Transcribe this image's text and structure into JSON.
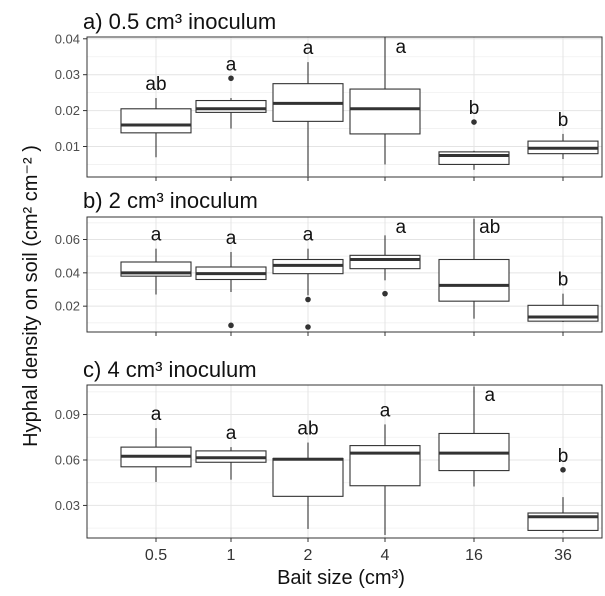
{
  "ylabel": "Hyphal density on soil (cm² cm⁻² )",
  "xlabel": "Bait size (cm³)",
  "chart_data": [
    {
      "type": "box",
      "title": "a) 0.5 cm³  inoculum",
      "categories": [
        "0.5",
        "1",
        "2",
        "4",
        "16",
        "36"
      ],
      "ylim": [
        0.0015,
        0.0405
      ],
      "yticks": [
        0.01,
        0.02,
        0.03,
        0.04
      ],
      "ytick_labels": [
        "0.01",
        "0.02",
        "0.03",
        "0.04"
      ],
      "boxes": [
        {
          "whisker_low": 0.007,
          "q1": 0.0138,
          "median": 0.016,
          "q3": 0.0205,
          "whisker_high": 0.0235,
          "outliers": [],
          "letter": "ab"
        },
        {
          "whisker_low": 0.015,
          "q1": 0.0195,
          "median": 0.0205,
          "q3": 0.0228,
          "whisker_high": 0.0235,
          "outliers": [
            0.029
          ],
          "letter": "a"
        },
        {
          "whisker_low": 0.0017,
          "q1": 0.017,
          "median": 0.022,
          "q3": 0.0275,
          "whisker_high": 0.0335,
          "outliers": [],
          "letter": "a"
        },
        {
          "whisker_low": 0.005,
          "q1": 0.0135,
          "median": 0.0205,
          "q3": 0.026,
          "whisker_high": 0.0405,
          "outliers": [],
          "letter": "a"
        },
        {
          "whisker_low": 0.0035,
          "q1": 0.005,
          "median": 0.0075,
          "q3": 0.0085,
          "whisker_high": 0.0088,
          "outliers": [
            0.0168
          ],
          "letter": "b"
        },
        {
          "whisker_low": 0.0065,
          "q1": 0.008,
          "median": 0.0095,
          "q3": 0.0115,
          "whisker_high": 0.0135,
          "outliers": [],
          "letter": "b"
        }
      ]
    },
    {
      "type": "box",
      "title": "b) 2 cm³ inoculum",
      "categories": [
        "0.5",
        "1",
        "2",
        "4",
        "16",
        "36"
      ],
      "ylim": [
        0.0045,
        0.0735
      ],
      "yticks": [
        0.02,
        0.04,
        0.06
      ],
      "ytick_labels": [
        "0.02",
        "0.04",
        "0.06"
      ],
      "boxes": [
        {
          "whisker_low": 0.027,
          "q1": 0.038,
          "median": 0.04,
          "q3": 0.0465,
          "whisker_high": 0.0545,
          "outliers": [],
          "letter": "a"
        },
        {
          "whisker_low": 0.0285,
          "q1": 0.036,
          "median": 0.0395,
          "q3": 0.0435,
          "whisker_high": 0.0525,
          "outliers": [
            0.0085
          ],
          "letter": "a"
        },
        {
          "whisker_low": 0.0265,
          "q1": 0.0395,
          "median": 0.0445,
          "q3": 0.048,
          "whisker_high": 0.0545,
          "outliers": [
            0.024,
            0.0075
          ],
          "letter": "a"
        },
        {
          "whisker_low": 0.0355,
          "q1": 0.0425,
          "median": 0.048,
          "q3": 0.0505,
          "whisker_high": 0.0625,
          "outliers": [
            0.0275
          ],
          "letter": "a"
        },
        {
          "whisker_low": 0.0125,
          "q1": 0.023,
          "median": 0.0325,
          "q3": 0.048,
          "whisker_high": 0.0725,
          "outliers": [],
          "letter": "ab"
        },
        {
          "whisker_low": 0.0105,
          "q1": 0.011,
          "median": 0.0135,
          "q3": 0.0205,
          "whisker_high": 0.0275,
          "outliers": [],
          "letter": "b"
        }
      ]
    },
    {
      "type": "box",
      "title": "c) 4 cm³ inoculum",
      "categories": [
        "0.5",
        "1",
        "2",
        "4",
        "16",
        "36"
      ],
      "ylim": [
        0.0085,
        0.1095
      ],
      "yticks": [
        0.03,
        0.06,
        0.09
      ],
      "ytick_labels": [
        "0.03",
        "0.06",
        "0.09"
      ],
      "boxes": [
        {
          "whisker_low": 0.0455,
          "q1": 0.0555,
          "median": 0.0625,
          "q3": 0.0685,
          "whisker_high": 0.081,
          "outliers": [],
          "letter": "a"
        },
        {
          "whisker_low": 0.047,
          "q1": 0.0585,
          "median": 0.0615,
          "q3": 0.066,
          "whisker_high": 0.0685,
          "outliers": [],
          "letter": "a"
        },
        {
          "whisker_low": 0.0145,
          "q1": 0.036,
          "median": 0.0605,
          "q3": 0.061,
          "whisker_high": 0.0715,
          "outliers": [],
          "letter": "ab"
        },
        {
          "whisker_low": 0.0105,
          "q1": 0.043,
          "median": 0.0645,
          "q3": 0.0695,
          "whisker_high": 0.0835,
          "outliers": [],
          "letter": "a"
        },
        {
          "whisker_low": 0.0425,
          "q1": 0.053,
          "median": 0.0645,
          "q3": 0.0775,
          "whisker_high": 0.1085,
          "outliers": [],
          "letter": "a"
        },
        {
          "whisker_low": 0.012,
          "q1": 0.0135,
          "median": 0.0225,
          "q3": 0.025,
          "whisker_high": 0.0355,
          "outliers": [
            0.0535
          ],
          "letter": "b"
        }
      ]
    }
  ]
}
